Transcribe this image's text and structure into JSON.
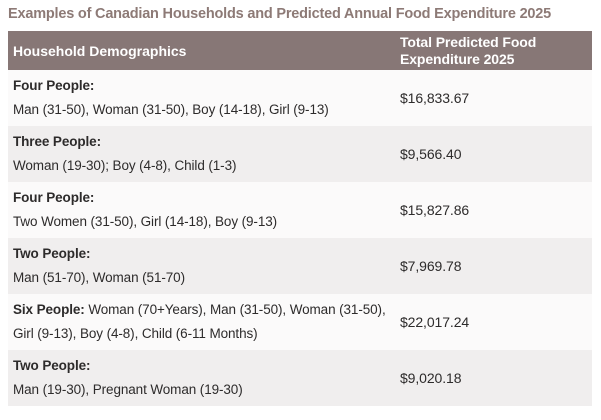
{
  "title": "Examples of Canadian Households and Predicted Annual Food Expenditure 2025",
  "colors": {
    "title_text": "#8d7a76",
    "header_bg": "#877776",
    "header_text": "#ffffff",
    "row_bg": "#fbfafa",
    "row_alt_bg": "#f0eeee",
    "body_text": "#2d2b2b"
  },
  "table": {
    "headers": [
      "Household Demographics",
      "Total Predicted Food Expenditure 2025"
    ],
    "rows": [
      {
        "label": "Four People:",
        "details": "Man (31-50), Woman (31-50), Boy (14-18), Girl (9-13)",
        "value": "$16,833.67",
        "inline": false
      },
      {
        "label": "Three People:",
        "details": "Woman (19-30); Boy (4-8), Child (1-3)",
        "value": "$9,566.40",
        "inline": false
      },
      {
        "label": "Four People:",
        "details": "Two Women (31-50), Girl (14-18), Boy (9-13)",
        "value": "$15,827.86",
        "inline": false
      },
      {
        "label": "Two People:",
        "details": "Man (51-70), Woman (51-70)",
        "value": "$7,969.78",
        "inline": false
      },
      {
        "label": "Six People:",
        "details": "Woman (70+Years), Man (31-50), Woman (31-50), Girl (9-13), Boy (4-8), Child (6-11 Months)",
        "value": "$22,017.24",
        "inline": true
      },
      {
        "label": "Two People:",
        "details": "Man (19-30), Pregnant Woman (19-30)",
        "value": "$9,020.18",
        "inline": false
      }
    ]
  }
}
